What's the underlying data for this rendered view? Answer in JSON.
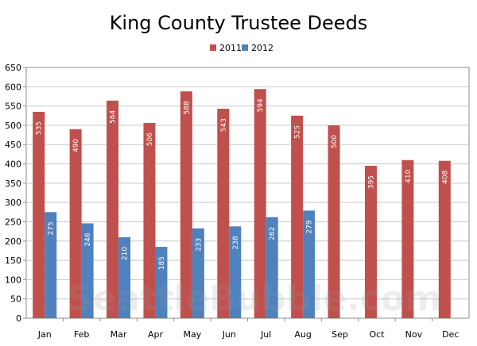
{
  "chart_data": {
    "type": "bar",
    "title": "King County Trustee Deeds",
    "xlabel": "",
    "ylabel": "",
    "ylim": [
      0,
      650
    ],
    "yticks": [
      0,
      50,
      100,
      150,
      200,
      250,
      300,
      350,
      400,
      450,
      500,
      550,
      600,
      650
    ],
    "grid": true,
    "legend_position": "top-center",
    "categories": [
      "Jan",
      "Feb",
      "Mar",
      "Apr",
      "May",
      "Jun",
      "Jul",
      "Aug",
      "Sep",
      "Oct",
      "Nov",
      "Dec"
    ],
    "series": [
      {
        "name": "2011",
        "color": "#C0504D",
        "values": [
          535,
          490,
          564,
          506,
          588,
          543,
          594,
          525,
          500,
          395,
          410,
          408
        ]
      },
      {
        "name": "2012",
        "color": "#4F81BD",
        "values": [
          275,
          246,
          210,
          185,
          233,
          238,
          262,
          279,
          null,
          null,
          null,
          null
        ]
      }
    ],
    "watermark": "SeattleBubble.com"
  }
}
